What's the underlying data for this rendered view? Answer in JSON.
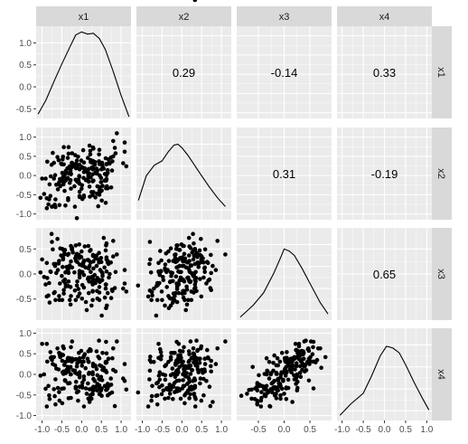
{
  "chart_data": {
    "type": "scatter",
    "variables": [
      "x1",
      "x2",
      "x3",
      "x4"
    ],
    "correlations": {
      "x1_x2": "0.29",
      "x1_x3": "-0.14",
      "x1_x4": "0.33",
      "x2_x3": "0.31",
      "x2_x4": "-0.19",
      "x3_x4": "0.65"
    },
    "axes": {
      "x1": {
        "range": [
          -1.15,
          1.25
        ],
        "ticks": [
          -1.0,
          -0.5,
          0.0,
          0.5,
          1.0
        ],
        "tick_labels": [
          "-1.0",
          "-0.5",
          "0.0",
          "0.5",
          "1.0"
        ]
      },
      "x2": {
        "range": [
          -1.15,
          1.25
        ],
        "ticks": [
          -1.0,
          -0.5,
          0.0,
          0.5,
          1.0
        ],
        "tick_labels": [
          "-1.0",
          "-0.5",
          "0.0",
          "0.5",
          "1.0"
        ]
      },
      "x3": {
        "range": [
          -0.92,
          0.92
        ],
        "ticks": [
          -0.5,
          0.0,
          0.5
        ],
        "tick_labels": [
          "-0.5",
          "0.0",
          "0.5"
        ]
      },
      "x4": {
        "range": [
          -1.12,
          1.12
        ],
        "ticks": [
          -1.0,
          -0.5,
          0.0,
          0.5,
          1.0
        ],
        "tick_labels": [
          "-1.0",
          "-0.5",
          "0.0",
          "0.5",
          "1.0"
        ]
      }
    },
    "density_yaxis": {
      "range": [
        -0.72,
        1.38
      ],
      "ticks": [
        -0.5,
        0.0,
        0.5,
        1.0
      ],
      "tick_labels": [
        "-0.5",
        "0.0",
        "0.5",
        "1.0"
      ]
    },
    "densities": {
      "x1": [
        [
          -1.1,
          -0.62
        ],
        [
          -0.9,
          -0.3
        ],
        [
          -0.7,
          0.12
        ],
        [
          -0.5,
          0.52
        ],
        [
          -0.3,
          0.9
        ],
        [
          -0.15,
          1.18
        ],
        [
          0.0,
          1.25
        ],
        [
          0.15,
          1.2
        ],
        [
          0.3,
          1.22
        ],
        [
          0.45,
          1.1
        ],
        [
          0.6,
          0.85
        ],
        [
          0.8,
          0.35
        ],
        [
          1.0,
          -0.2
        ],
        [
          1.2,
          -0.68
        ]
      ],
      "x2": [
        [
          -1.1,
          -0.28
        ],
        [
          -0.9,
          0.28
        ],
        [
          -0.7,
          0.52
        ],
        [
          -0.5,
          0.62
        ],
        [
          -0.35,
          0.82
        ],
        [
          -0.2,
          0.98
        ],
        [
          -0.1,
          1.0
        ],
        [
          0.0,
          0.92
        ],
        [
          0.15,
          0.75
        ],
        [
          0.3,
          0.55
        ],
        [
          0.5,
          0.28
        ],
        [
          0.7,
          0.02
        ],
        [
          0.9,
          -0.22
        ],
        [
          1.1,
          -0.42
        ]
      ],
      "x3": [
        [
          -0.85,
          -0.65
        ],
        [
          -0.6,
          -0.38
        ],
        [
          -0.4,
          -0.1
        ],
        [
          -0.2,
          0.35
        ],
        [
          -0.05,
          0.75
        ],
        [
          0.0,
          0.9
        ],
        [
          0.1,
          0.85
        ],
        [
          0.2,
          0.75
        ],
        [
          0.35,
          0.45
        ],
        [
          0.5,
          0.12
        ],
        [
          0.7,
          -0.32
        ],
        [
          0.85,
          -0.58
        ]
      ],
      "x4": [
        [
          -1.05,
          -0.6
        ],
        [
          -0.8,
          -0.35
        ],
        [
          -0.5,
          -0.1
        ],
        [
          -0.3,
          0.3
        ],
        [
          -0.1,
          0.75
        ],
        [
          0.05,
          0.97
        ],
        [
          0.2,
          0.93
        ],
        [
          0.35,
          0.82
        ],
        [
          0.5,
          0.55
        ],
        [
          0.7,
          0.15
        ],
        [
          0.9,
          -0.22
        ],
        [
          1.05,
          -0.48
        ]
      ]
    },
    "points": {
      "x1": [
        0.64,
        -0.88,
        0.63,
        0.3,
        -0.67,
        -0.57,
        -0.55,
        1.13,
        -0.06,
        0.2,
        -0.22,
        0.66,
        -0.36,
        -0.34,
        0.45,
        0.01,
        -0.81,
        0.17,
        0.68,
        1.09,
        -0.27,
        0.78,
        -0.4,
        -0.61,
        -1.04,
        -0.66,
        -0.7,
        -0.35,
        0.38,
        0.22,
        -0.33,
        0.06,
        -0.11,
        -0.24,
        -0.46,
        -0.58,
        0.23,
        -0.91,
        -0.79,
        -0.44,
        -0.28,
        0.56,
        0.08,
        -0.45,
        0.58,
        0.29,
        0.05,
        -0.47,
        1.09,
        0.23,
        -0.95,
        0.53,
        0.45,
        0.86,
        0.11,
        0.3,
        0.02,
        -0.68,
        -0.84,
        0.06,
        0.28,
        0.74,
        0.8,
        -0.42,
        -0.01,
        -0.11,
        0.89,
        0.62,
        -0.42,
        0.04,
        1.05,
        0.3,
        0.06,
        0.59,
        -0.16,
        0.44,
        0.22,
        0.3,
        0.19,
        0.4,
        -0.45,
        0.44,
        0.23,
        -0.76,
        -0.05,
        -0.27,
        -0.12,
        -0.75,
        -0.54,
        -0.33,
        0.26,
        -0.05,
        0.4,
        0.01,
        -0.14,
        -0.33,
        0.45,
        0.46,
        -0.66,
        0.16,
        -0.07,
        -0.7,
        -0.56,
        0.84,
        -0.88,
        -0.82,
        -0.38,
        0.61,
        -0.14,
        0.46,
        0.38,
        -0.41,
        0.51,
        -0.24,
        0.33,
        0.29,
        0.69,
        -0.47,
        0.35,
        -0.25,
        0.02,
        -0.3,
        -0.43,
        0.51,
        -0.34,
        0.25,
        -0.6,
        0.63,
        -0.05,
        0.75,
        0.45,
        0.18,
        -0.73,
        0.13,
        -0.52,
        -0.78,
        -0.08,
        0.21,
        -0.35,
        -0.17,
        0.17,
        -0.64,
        0.39,
        0.28,
        0.1,
        0.61,
        -0.0,
        0.28,
        -0.06,
        0.49,
        -0.87,
        -0.57,
        0.15,
        0.63,
        0.34,
        0.66,
        -0.3,
        0.06,
        -0.41,
        -0.48,
        0.8,
        0.66,
        0.28,
        0.49,
        0.62,
        -0.33,
        0.17,
        -0.49,
        0.63,
        0.52,
        0.62,
        -0.09,
        -1.0,
        -0.12,
        -0.18,
        0.61,
        0.5,
        -0.24,
        -0.15,
        0.42,
        0.53,
        -0.5,
        0.77,
        -0.05,
        -0.05,
        -0.45,
        0.39,
        -0.05,
        -0.49,
        0.35,
        -0.15,
        0.47,
        -0.28,
        -0.27,
        0.2,
        0.28,
        0.18,
        0.71
      ],
      "x2": [
        -0.28,
        -0.85,
        0.3,
        0.7,
        0.01,
        -0.22,
        -0.09,
        0.24,
        -0.01,
        -0.29,
        0.26,
        0.14,
        0.19,
        -0.64,
        0.67,
        -0.25,
        -0.23,
        0.03,
        0.42,
        0.62,
        0.05,
        0.37,
        0.12,
        0.48,
        -0.58,
        -0.82,
        -0.08,
        0.46,
        0.05,
        0.55,
        0.06,
        0.34,
        0.22,
        0.22,
        -0.23,
        0.4,
        -0.05,
        -0.08,
        -0.53,
        -0.16,
        -0.12,
        0.18,
        0.19,
        0.29,
        -0.13,
        0.38,
        -0.06,
        0.49,
        0.86,
        0.35,
        -0.48,
        0.25,
        -0.5,
        0.58,
        -0.12,
        -0.43,
        -0.61,
        -0.76,
        -0.75,
        0.09,
        -0.51,
        0.47,
        0.9,
        0.03,
        0.39,
        -0.16,
        1.1,
        -0.33,
        -0.07,
        0.66,
        0.32,
        -0.13,
        -0.56,
        0.04,
        0.53,
        0.37,
        0.64,
        0.18,
        0.06,
        -0.28,
        0.01,
        0.55,
        0.4,
        0.28,
        -0.42,
        -0.34,
        0.39,
        -0.81,
        -0.28,
        0.74,
        0.21,
        0.28,
        0.14,
        0.22,
        0.31,
        0.57,
        0.3,
        -0.3,
        -0.62,
        0.46,
        -0.18,
        0.33,
        -0.77,
        0.72,
        -0.59,
        -0.62,
        -0.1,
        0.45,
        0.19,
        0.0,
        0.18,
        -0.13,
        -0.65,
        0.33,
        0.28,
        0.73,
        0.33,
        -0.04,
        -0.57,
        0.33,
        0.2,
        0.24,
        -0.4,
        -0.39,
        -0.59,
        -0.43,
        -0.36,
        0.01,
        -0.21,
        -0.31,
        -0.38,
        0.17,
        0.59,
        0.1,
        0.31,
        -0.02,
        -0.12,
        -0.55,
        -0.06,
        -0.81,
        0.02,
        -0.24,
        -0.47,
        0.33,
        0.11,
        -0.12,
        -0.34,
        -0.15,
        -0.04,
        -0.06,
        0.36,
        -0.18,
        -0.1,
        -0.09,
        0.35,
        0.07,
        -0.19,
        -0.52,
        -0.78,
        0.42,
        0.5,
        -0.33,
        0.16,
        -0.17,
        -0.12,
        0.19,
        -0.03,
        -0.14,
        0.29,
        0.33,
        -0.13,
        0.49,
        -0.08,
        -1.11,
        -0.28,
        -0.71,
        0.16,
        0.58,
        0.24,
        -0.8,
        -0.27,
        0.29,
        0.13,
        -0.53,
        -0.56,
        0.74,
        0.06,
        0.16,
        0.07,
        0.08,
        -0.11,
        -0.42,
        0.13,
        0.03,
        0.78,
        0.03,
        -0.16,
        0.31,
        0.33
      ],
      "x3": [
        -0.63,
        -0.45,
        0.61,
        -0.11,
        0.16,
        0.26,
        -0.19,
        -0.35,
        0.59,
        -0.15,
        0.43,
        0.23,
        0.07,
        -0.24,
        -0.13,
        -0.49,
        -0.57,
        0.56,
        0.2,
        -0.19,
        0.56,
        -0.34,
        -0.25,
        0.7,
        0.03,
        0.2,
        -0.38,
        0.38,
        0.16,
        -0.07,
        0.4,
        -0.27,
        -0.15,
        0.52,
        -0.14,
        0.21,
        0.48,
        -0.21,
        0.05,
        0.39,
        -0.26,
        0.72,
        0.55,
        0.47,
        0.13,
        0.36,
        0.16,
        0.29,
        0.08,
        0.04,
        -0.06,
        0.01,
        -0.52,
        0.04,
        -0.56,
        0.11,
        -0.22,
        -0.36,
        -0.43,
        0.25,
        -0.35,
        0.23,
        0.66,
        -0.11,
        0.34,
        0.24,
        0.39,
        -0.68,
        0.48,
        0.22,
        -0.29,
        0.25,
        -0.02,
        -0.47,
        0.31,
        0.42,
        0.24,
        -0.12,
        -0.15,
        -0.49,
        -0.39,
        0.23,
        0.23,
        0.8,
        0.19,
        -0.44,
        0.4,
        0.64,
        0.51,
        0.02,
        -0.16,
        0.01,
        -0.08,
        0.17,
        0.36,
        0.11,
        -0.37,
        -0.16,
        -0.52,
        -0.1,
        0.38,
        0.2,
        -0.52,
        -0.28,
        0.22,
        -0.18,
        0.14,
        0.47,
        0.26,
        -0.12,
        0.37,
        -0.19,
        -0.83,
        0.48,
        -0.02,
        0.38,
        -0.07,
        0.32,
        -0.18,
        0.5,
        0.04,
        0.17,
        0.41,
        0.04,
        0.05,
        -0.63,
        0.08,
        0.33,
        -0.39,
        -0.48,
        -0.26,
        0.11,
        0.49,
        -0.72,
        0.37,
        0.04,
        -0.3,
        0.46,
        0.04,
        -0.33,
        0.28,
        0.02,
        -0.12,
        -0.21,
        0.13,
        -0.21,
        0.45,
        -0.05,
        0.32,
        -0.13,
        -0.08,
        -0.44,
        0.28,
        0.05,
        -0.15,
        -0.38,
        -0.52,
        0.27,
        0.03,
        0.14,
        0.35,
        0.26,
        -0.52,
        0.32,
        -0.21,
        -0.15,
        -0.07,
        0.5,
        0.29,
        -0.12,
        0.57,
        -0.45,
        0.29,
        -0.23,
        0.03,
        -0.29,
        0.24,
        0.13,
        -0.52,
        0.29,
        -0.04,
        -0.04,
        -0.31,
        0.06,
        -0.01,
        -0.32,
        -0.34,
        -0.07,
        -0.52,
        0.31,
        0.57,
        0.08,
        -0.61,
        0.25,
        0.16,
        -0.34,
        -0.38,
        -0.0
      ],
      "x4": [
        -0.37,
        -0.78,
        0.29,
        -0.3,
        0.22,
        0.52,
        0.46,
        -0.37,
        0.31,
        -0.36,
        0.1,
        -0.23,
        0.33,
        -0.22,
        0.39,
        -0.28,
        -0.6,
        0.31,
        0.38,
        -0.16,
        0.66,
        0.39,
        0.03,
        0.63,
        -0.03,
        -0.12,
        -0.36,
        0.38,
        0.13,
        -0.51,
        0.07,
        -0.78,
        0.01,
        0.8,
        0.01,
        0.12,
        0.57,
        -0.35,
        0.54,
        0.23,
        0.0,
        0.16,
        0.49,
        0.63,
        0.09,
        0.26,
        0.31,
        0.68,
        0.25,
        -0.6,
        -0.0,
        0.11,
        -0.27,
        0.07,
        -0.34,
        0.2,
        -0.2,
        -0.53,
        -0.28,
        -0.05,
        -0.48,
        -0.1,
        0.63,
        -0.14,
        0.57,
        0.27,
        0.8,
        -0.38,
        -0.15,
        0.41,
        -0.1,
        -0.39,
        -0.13,
        -0.28,
        0.04,
        0.82,
        0.59,
        -0.11,
        0.04,
        -0.02,
        -0.34,
        -0.11,
        0.59,
        0.42,
        -0.02,
        -0.57,
        0.19,
        0.35,
        0.42,
        0.33,
        -0.48,
        0.39,
        -0.23,
        0.21,
        0.37,
        0.12,
        -0.48,
        -0.47,
        -0.73,
        -0.22,
        0.52,
        0.42,
        -0.64,
        -0.77,
        0.74,
        -0.51,
        0.11,
        0.28,
        -0.18,
        0.22,
        0.56,
        -0.16,
        -0.52,
        0.38,
        -0.16,
        0.2,
        -0.28,
        0.47,
        -0.31,
        0.31,
        -0.32,
        0.39,
        0.23,
        -0.34,
        0.4,
        -0.59,
        -0.33,
        0.31,
        -0.3,
        -0.25,
        -0.36,
        0.3,
        0.25,
        -0.47,
        0.49,
        0.4,
        -0.41,
        0.61,
        0.18,
        0.09,
        0.56,
        0.14,
        -0.39,
        -0.32,
        0.15,
        0.09,
        0.3,
        0.05,
        0.33,
        -0.39,
        0.31,
        -0.43,
        0.38,
        0.05,
        0.22,
        -0.51,
        -0.21,
        0.45,
        0.3,
        0.05,
        0.11,
        -0.33,
        -0.39,
        -0.06,
        0.28,
        -0.58,
        -0.59,
        0.33,
        0.51,
        -0.14,
        0.79,
        -0.64,
        0.74,
        -0.44,
        0.36,
        0.3,
        0.2,
        0.38,
        -0.3,
        0.43,
        0.52,
        -0.35,
        -0.44,
        0.37,
        0.05,
        0.07,
        -0.28,
        -0.07,
        -0.7,
        0.2,
        -0.34,
        -0.13,
        0.18,
        -0.0,
        -0.67,
        0.0,
        0.01,
        -0.47,
        -0.55,
        -0.11
      ]
    }
  }
}
